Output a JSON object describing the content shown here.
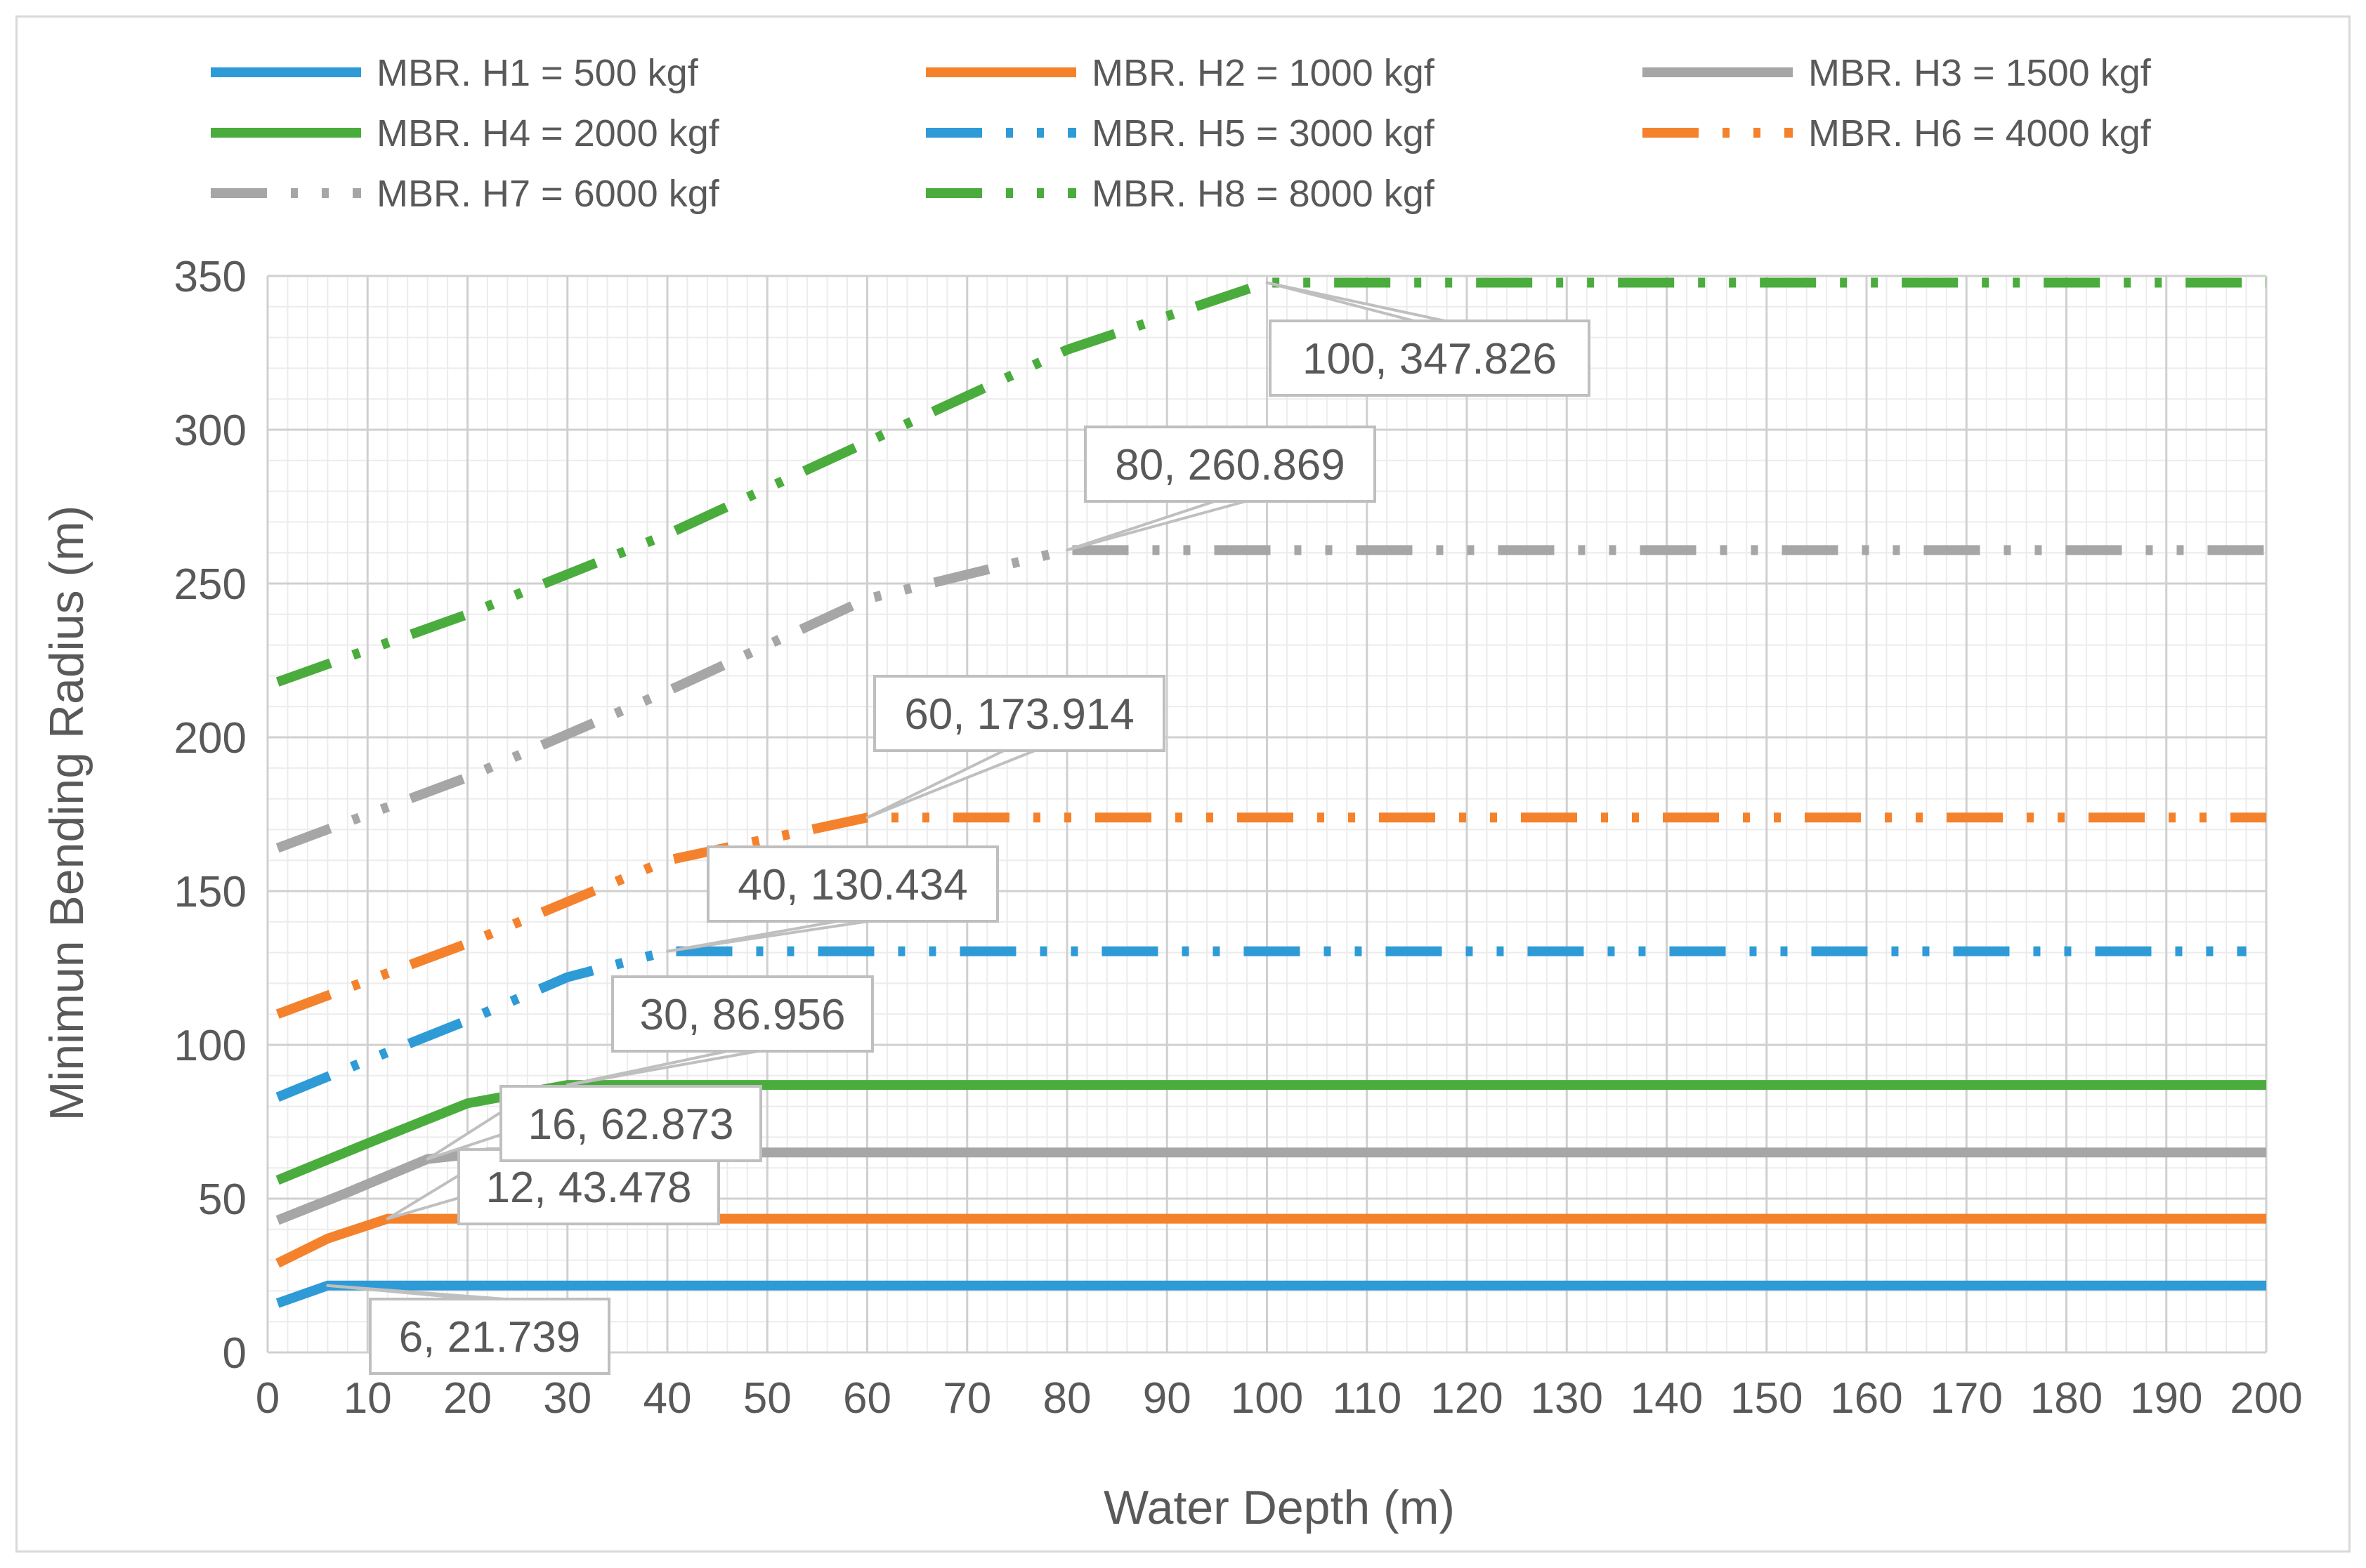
{
  "chart_data": {
    "type": "line",
    "title": "",
    "xlabel": "Water Depth (m)",
    "ylabel": "Minimun Bending Radius (m)",
    "xlim": [
      0,
      200
    ],
    "ylim": [
      0,
      350
    ],
    "xticks": [
      0,
      10,
      20,
      30,
      40,
      50,
      60,
      70,
      80,
      90,
      100,
      110,
      120,
      130,
      140,
      150,
      160,
      170,
      180,
      190,
      200
    ],
    "yticks": [
      0,
      50,
      100,
      150,
      200,
      250,
      300,
      350
    ],
    "xtick_labels": [
      "0",
      "10",
      "20",
      "30",
      "40",
      "50",
      "60",
      "70",
      "80",
      "90",
      "100",
      "110",
      "120",
      "130",
      "140",
      "150",
      "160",
      "170",
      "180",
      "190",
      "200"
    ],
    "ytick_labels": [
      "0",
      "50",
      "100",
      "150",
      "200",
      "250",
      "300",
      "350"
    ],
    "grid": true,
    "legend_position": "top",
    "series": [
      {
        "name": "MBR. H1 = 500 kgf",
        "color": "#2e9bd7",
        "dash": "solid",
        "x": [
          1,
          6,
          200
        ],
        "y": [
          16,
          21.739,
          21.739
        ]
      },
      {
        "name": "MBR. H2 = 1000 kgf",
        "color": "#f4822c",
        "dash": "solid",
        "x": [
          1,
          6,
          12,
          200
        ],
        "y": [
          29,
          37,
          43.478,
          43.478
        ]
      },
      {
        "name": "MBR. H3 = 1500 kgf",
        "color": "#a6a6a6",
        "dash": "solid",
        "x": [
          1,
          8,
          16,
          22,
          200
        ],
        "y": [
          43,
          52,
          62.873,
          65,
          65
        ]
      },
      {
        "name": "MBR. H4 = 2000 kgf",
        "color": "#4aac3c",
        "dash": "solid",
        "x": [
          1,
          10,
          20,
          30,
          200
        ],
        "y": [
          56,
          68,
          81,
          86.956,
          86.956
        ]
      },
      {
        "name": "MBR. H5 = 3000 kgf",
        "color": "#2e9bd7",
        "dash": "dashdotdot",
        "x": [
          1,
          10,
          20,
          30,
          40,
          198
        ],
        "y": [
          83,
          95,
          108,
          122,
          130.434,
          130.434
        ]
      },
      {
        "name": "MBR. H6 = 4000 kgf",
        "color": "#f4822c",
        "dash": "dashdotdot",
        "x": [
          1,
          20,
          40,
          60,
          200
        ],
        "y": [
          110,
          133,
          160,
          173.914,
          173.914
        ]
      },
      {
        "name": "MBR. H7 = 6000 kgf",
        "color": "#a6a6a6",
        "dash": "dashdotdot",
        "x": [
          1,
          20,
          40,
          60,
          80,
          200
        ],
        "y": [
          164,
          187,
          215,
          245,
          260.869,
          260.869
        ]
      },
      {
        "name": "MBR. H8 = 8000 kgf",
        "color": "#4aac3c",
        "dash": "dashdotdot",
        "x": [
          1,
          20,
          40,
          60,
          80,
          100,
          200
        ],
        "y": [
          218,
          240,
          266,
          296,
          326,
          347.826,
          347.826
        ]
      }
    ],
    "annotations": [
      {
        "text": "6, 21.739",
        "x": 6,
        "y": 21.739
      },
      {
        "text": "12, 43.478",
        "x": 12,
        "y": 43.478
      },
      {
        "text": "16, 62.873",
        "x": 16,
        "y": 62.873
      },
      {
        "text": "30, 86.956",
        "x": 30,
        "y": 86.956
      },
      {
        "text": "40, 130.434",
        "x": 40,
        "y": 130.434
      },
      {
        "text": "60, 173.914",
        "x": 60,
        "y": 173.914
      },
      {
        "text": "80, 260.869",
        "x": 80,
        "y": 260.869
      },
      {
        "text": "100, 347.826",
        "x": 100,
        "y": 347.826
      }
    ]
  }
}
